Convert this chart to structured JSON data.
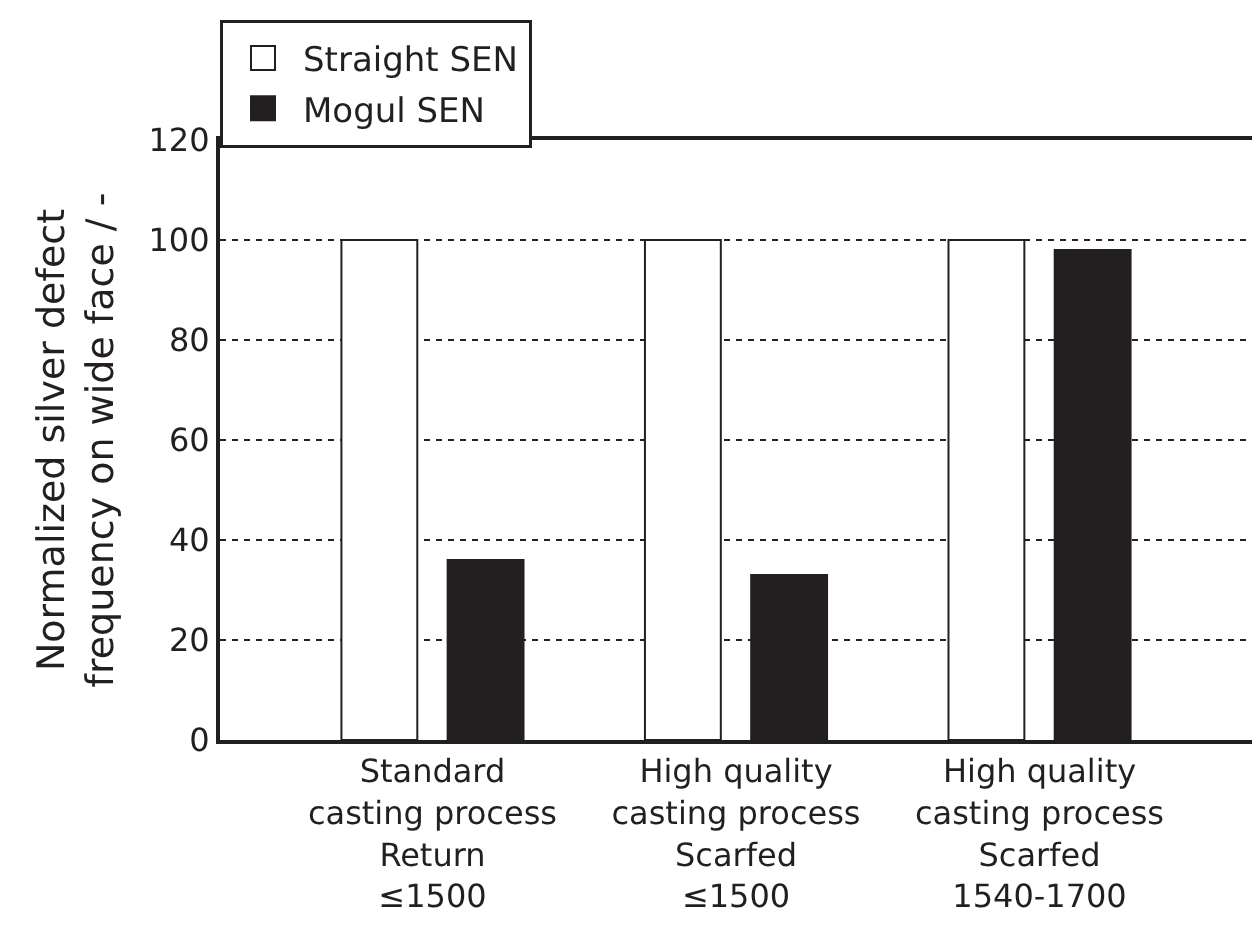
{
  "chart_data": {
    "type": "bar",
    "ylabel": "Normalized silver defect\nfrequency on wide face / -",
    "categories": [
      "Standard\ncasting process\nReturn\n≤1500",
      "High quality\ncasting process\nScarfed\n≤1500",
      "High quality\ncasting process\nScarfed\n1540-1700"
    ],
    "series": [
      {
        "name": "Straight SEN",
        "color": "#ffffff",
        "values": [
          100,
          100,
          100
        ]
      },
      {
        "name": "Mogul SEN",
        "color": "#231f20",
        "values": [
          36,
          33,
          98
        ]
      }
    ],
    "ylim": [
      0,
      120
    ],
    "yticks": [
      0,
      20,
      40,
      60,
      80,
      100,
      120
    ],
    "grid": "y",
    "legend": "top left"
  }
}
